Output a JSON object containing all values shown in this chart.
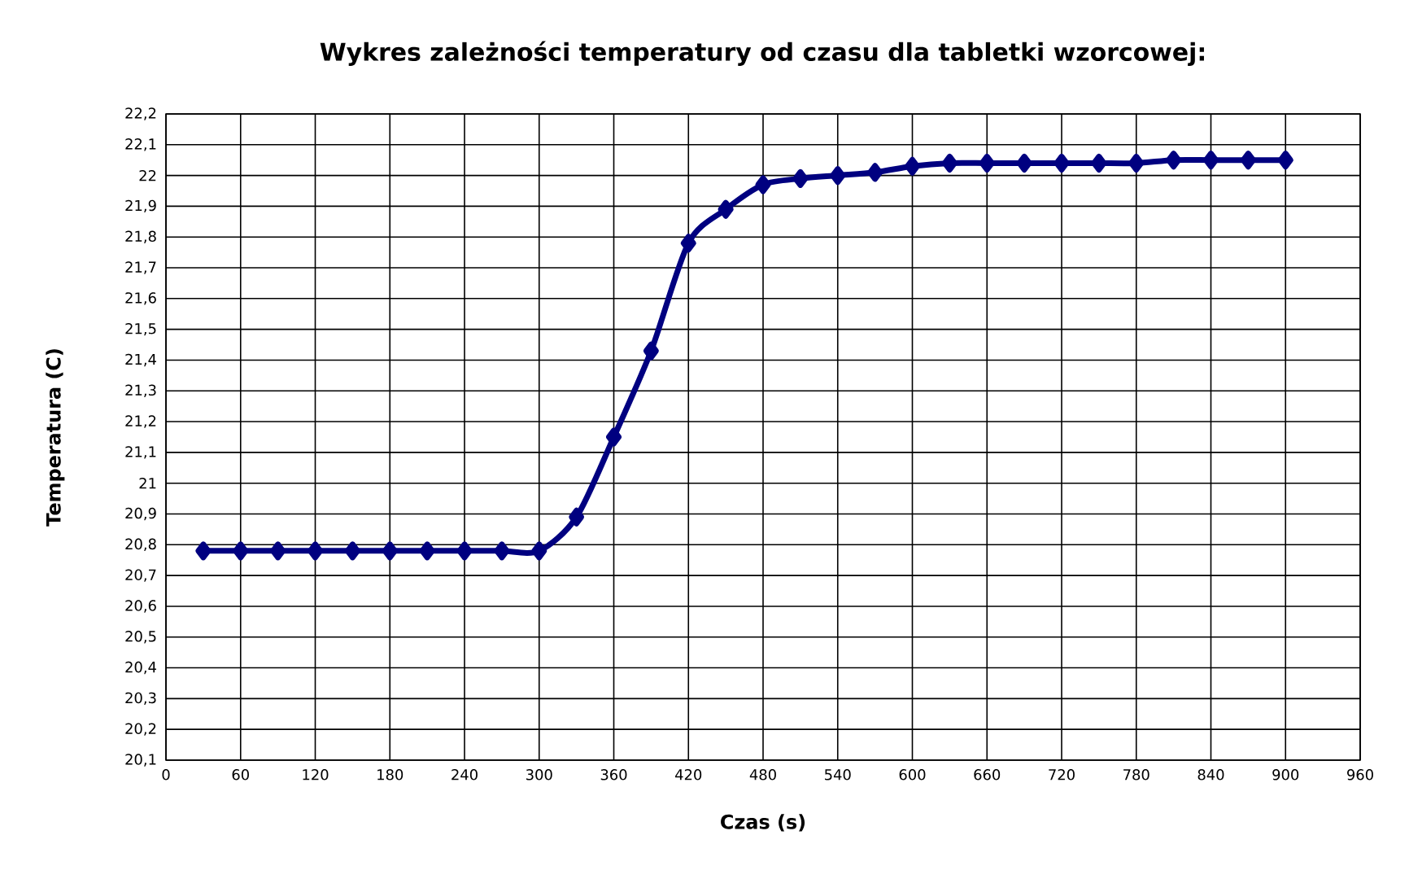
{
  "chart_data": {
    "type": "line",
    "title": "Wykres zależności temperatury od czasu dla tabletki wzorcowej:",
    "xlabel": "Czas (s)",
    "ylabel": "Temperatura (C)",
    "x": [
      30,
      60,
      90,
      120,
      150,
      180,
      210,
      240,
      270,
      300,
      330,
      360,
      390,
      420,
      450,
      480,
      510,
      540,
      570,
      600,
      630,
      660,
      690,
      720,
      750,
      780,
      810,
      840,
      870,
      900
    ],
    "series": [
      {
        "color": "#000080",
        "values": [
          20.78,
          20.78,
          20.78,
          20.78,
          20.78,
          20.78,
          20.78,
          20.78,
          20.78,
          20.78,
          20.89,
          21.15,
          21.43,
          21.78,
          21.89,
          21.97,
          21.99,
          22.0,
          22.01,
          22.03,
          22.04,
          22.04,
          22.04,
          22.04,
          22.04,
          22.04,
          22.05,
          22.05,
          22.05,
          22.05
        ]
      }
    ],
    "xlim": [
      0,
      960
    ],
    "xticks": [
      0,
      60,
      120,
      180,
      240,
      300,
      360,
      420,
      480,
      540,
      600,
      660,
      720,
      780,
      840,
      900,
      960
    ],
    "ylim": [
      20.1,
      22.2
    ],
    "yticks": [
      {
        "value": 20.1,
        "label": "20,1"
      },
      {
        "value": 20.2,
        "label": "20,2"
      },
      {
        "value": 20.3,
        "label": "20,3"
      },
      {
        "value": 20.4,
        "label": "20,4"
      },
      {
        "value": 20.5,
        "label": "20,5"
      },
      {
        "value": 20.6,
        "label": "20,6"
      },
      {
        "value": 20.7,
        "label": "20,7"
      },
      {
        "value": 20.8,
        "label": "20,8"
      },
      {
        "value": 20.9,
        "label": "20,9"
      },
      {
        "value": 21,
        "label": "21"
      },
      {
        "value": 21.1,
        "label": "21,1"
      },
      {
        "value": 21.2,
        "label": "21,2"
      },
      {
        "value": 21.3,
        "label": "21,3"
      },
      {
        "value": 21.4,
        "label": "21,4"
      },
      {
        "value": 21.5,
        "label": "21,5"
      },
      {
        "value": 21.6,
        "label": "21,6"
      },
      {
        "value": 21.7,
        "label": "21,7"
      },
      {
        "value": 21.8,
        "label": "21,8"
      },
      {
        "value": 21.9,
        "label": "21,9"
      },
      {
        "value": 22,
        "label": "22"
      },
      {
        "value": 22.1,
        "label": "22,1"
      },
      {
        "value": 22.2,
        "label": "22,2"
      }
    ],
    "grid": true,
    "marker": "diamond",
    "line_style": "solid"
  }
}
